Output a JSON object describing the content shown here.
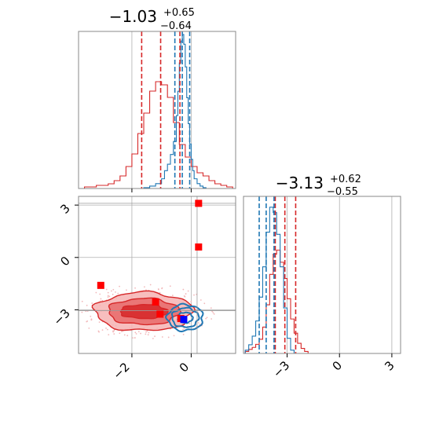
{
  "chart_data": [
    {
      "type": "histogram",
      "panel": "top-left",
      "title": {
        "median": "−1.03",
        "plus": "+0.65",
        "minus": "−0.64"
      },
      "xlim": [
        -3.8,
        1.5
      ],
      "grid": true,
      "series": [
        {
          "name": "",
          "color": "#d62728",
          "bins": [
            -3.8,
            -3.6,
            -3.4,
            -3.2,
            -3.0,
            -2.8,
            -2.6,
            -2.4,
            -2.2,
            -2.0,
            -1.8,
            -1.6,
            -1.4,
            -1.2,
            -1.0,
            -0.8,
            -0.6,
            -0.4,
            -0.2,
            0.0,
            0.2,
            0.4,
            0.6,
            0.8,
            1.0,
            1.2,
            1.4,
            1.5
          ],
          "counts": [
            0,
            1,
            1,
            2,
            2,
            3,
            5,
            8,
            14,
            22,
            35,
            48,
            62,
            68,
            66,
            58,
            42,
            28,
            20,
            14,
            10,
            8,
            5,
            3,
            2,
            1,
            0
          ]
        },
        {
          "name": "",
          "color": "#1f77b4",
          "bins": [
            -1.6,
            -1.4,
            -1.2,
            -1.0,
            -0.9,
            -0.8,
            -0.7,
            -0.6,
            -0.5,
            -0.45,
            -0.4,
            -0.35,
            -0.3,
            -0.25,
            -0.2,
            -0.15,
            -0.1,
            -0.05,
            0.0,
            0.05,
            0.1,
            0.2,
            0.3,
            0.4,
            0.5
          ],
          "counts": [
            1,
            3,
            6,
            12,
            22,
            30,
            42,
            58,
            90,
            120,
            155,
            182,
            190,
            178,
            150,
            112,
            80,
            55,
            36,
            22,
            12,
            6,
            3,
            1
          ]
        }
      ],
      "quantile_lines": [
        {
          "color": "#d62728",
          "x": [
            -1.67,
            -1.03,
            -0.38
          ]
        },
        {
          "color": "#1f77b4",
          "x": [
            -0.55,
            -0.3,
            -0.05
          ]
        }
      ]
    },
    {
      "type": "scatter",
      "panel": "bottom-left",
      "xlim": [
        -3.8,
        1.5
      ],
      "ylim": [
        -5.5,
        3.5
      ],
      "xticks": [
        {
          "v": -2,
          "label": "−2"
        },
        {
          "v": 0,
          "label": "0"
        }
      ],
      "yticks": [
        {
          "v": 3,
          "label": "3"
        },
        {
          "v": 0,
          "label": "0"
        },
        {
          "v": -3,
          "label": "−3"
        }
      ],
      "grid": true,
      "reference_lines": {
        "x": [
          0.2
        ],
        "y": [
          3.1,
          -3.05
        ]
      },
      "contours": [
        {
          "color": "#d62728",
          "center": [
            -1.6,
            -3.1
          ],
          "radii": [
            [
              0.8,
              0.4
            ],
            [
              1.2,
              0.75
            ],
            [
              1.65,
              1.1
            ]
          ]
        },
        {
          "color": "#1f77b4",
          "center": [
            -0.2,
            -3.45
          ],
          "radii": [
            [
              0.25,
              0.3
            ],
            [
              0.45,
              0.55
            ],
            [
              0.6,
              0.75
            ]
          ]
        }
      ],
      "points": [
        {
          "x": 0.25,
          "y": 3.1,
          "color": "#ff0000"
        },
        {
          "x": 0.25,
          "y": 0.6,
          "color": "#ff0000"
        },
        {
          "x": -3.05,
          "y": -1.6,
          "color": "#ff0000"
        },
        {
          "x": -1.2,
          "y": -2.55,
          "color": "#ff0000"
        },
        {
          "x": -1.05,
          "y": -3.25,
          "color": "#ff0000"
        },
        {
          "x": -0.35,
          "y": -3.5,
          "color": "#ff0000"
        },
        {
          "x": -0.25,
          "y": -3.55,
          "color": "#0000ff"
        }
      ]
    },
    {
      "type": "histogram",
      "panel": "bottom-right",
      "title": {
        "median": "−3.13",
        "plus": "+0.62",
        "minus": "−0.55"
      },
      "xlim": [
        -5.5,
        3.5
      ],
      "xticks": [
        {
          "v": -3,
          "label": "−3"
        },
        {
          "v": 0,
          "label": "0"
        },
        {
          "v": 3,
          "label": "3"
        }
      ],
      "grid": true,
      "series": [
        {
          "name": "",
          "color": "#d62728",
          "bins": [
            -5.4,
            -5.2,
            -5.0,
            -4.8,
            -4.6,
            -4.4,
            -4.2,
            -4.0,
            -3.8,
            -3.6,
            -3.4,
            -3.2,
            -3.0,
            -2.8,
            -2.6,
            -2.4,
            -2.2,
            -2.0,
            -1.8
          ],
          "counts": [
            2,
            4,
            6,
            9,
            14,
            26,
            48,
            78,
            98,
            102,
            90,
            74,
            54,
            34,
            20,
            10,
            5,
            2
          ]
        },
        {
          "name": "",
          "color": "#1f77b4",
          "bins": [
            -5.4,
            -5.2,
            -5.0,
            -4.8,
            -4.6,
            -4.4,
            -4.2,
            -4.0,
            -3.8,
            -3.6,
            -3.4,
            -3.2,
            -3.0,
            -2.8,
            -2.6
          ],
          "counts": [
            3,
            8,
            16,
            30,
            52,
            80,
            112,
            135,
            130,
            110,
            80,
            42,
            14,
            3
          ]
        }
      ],
      "quantile_lines": [
        {
          "color": "#d62728",
          "x": [
            -3.68,
            -3.13,
            -2.51
          ]
        },
        {
          "color": "#1f77b4",
          "x": [
            -4.6,
            -4.2,
            -3.75
          ]
        }
      ]
    }
  ]
}
